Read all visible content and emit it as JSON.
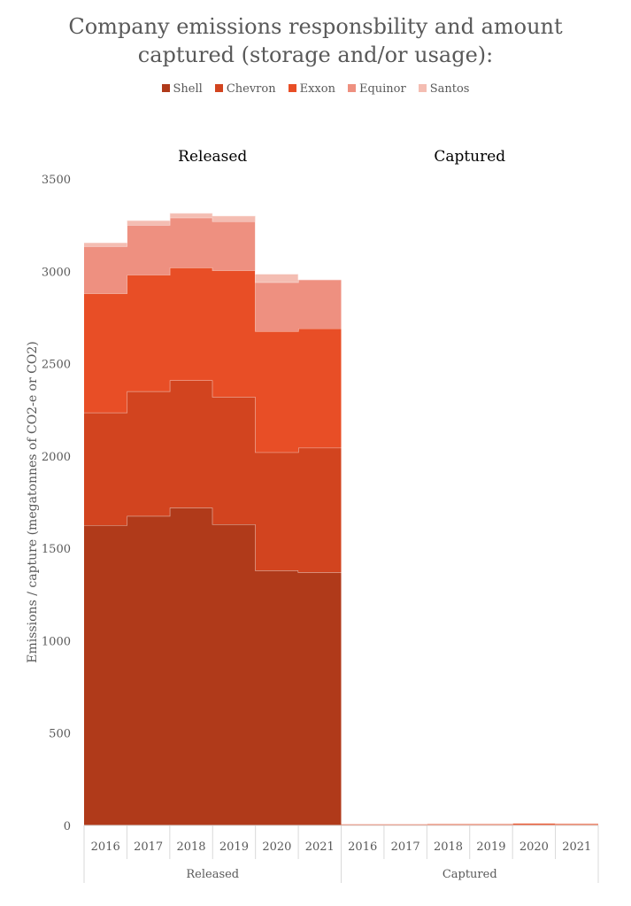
{
  "title_lines": [
    "Company emissions responsbility and amount",
    "captured (storage and/or usage):"
  ],
  "chart_data": {
    "type": "area",
    "title": "Company emissions responsbility and amount captured (storage and/or usage):",
    "ylabel": "Emissions / capture (megatonnes of CO2-e or CO2)",
    "xlabel": "",
    "ylim": [
      0,
      3500
    ],
    "yticks": [
      0,
      500,
      1000,
      1500,
      2000,
      2500,
      3000,
      3500
    ],
    "legend_position": "top",
    "grid": false,
    "panels": [
      {
        "name": "Released",
        "categories": [
          "2016",
          "2017",
          "2018",
          "2019",
          "2020",
          "2021"
        ]
      },
      {
        "name": "Captured",
        "categories": [
          "2016",
          "2017",
          "2018",
          "2019",
          "2020",
          "2021"
        ]
      }
    ],
    "series": [
      {
        "name": "Shell",
        "color": "#B03A1A",
        "released": [
          1625,
          1675,
          1720,
          1630,
          1380,
          1370
        ],
        "captured": [
          2,
          2,
          2,
          2,
          2,
          2
        ]
      },
      {
        "name": "Chevron",
        "color": "#D2441F",
        "released": [
          610,
          675,
          690,
          690,
          640,
          675
        ],
        "captured": [
          1,
          1,
          1,
          1,
          1,
          1
        ]
      },
      {
        "name": "Exxon",
        "color": "#E84E26",
        "released": [
          645,
          630,
          610,
          685,
          655,
          645
        ],
        "captured": [
          5,
          5,
          6,
          6,
          9,
          7
        ]
      },
      {
        "name": "Equinor",
        "color": "#EE9080",
        "released": [
          255,
          270,
          270,
          265,
          265,
          265
        ],
        "captured": [
          1,
          1,
          1,
          1,
          1,
          1
        ]
      },
      {
        "name": "Santos",
        "color": "#F4BDB2",
        "released": [
          20,
          25,
          25,
          30,
          45,
          0
        ],
        "captured": [
          0,
          0,
          0,
          0,
          0,
          0
        ]
      }
    ]
  }
}
